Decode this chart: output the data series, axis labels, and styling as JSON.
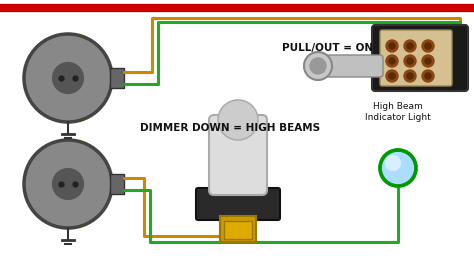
{
  "bg_color": "#ffffff",
  "red_wire_color": "#cc0000",
  "gold_wire_color": "#cc8800",
  "green_wire_color": "#22aa22",
  "black_wire_color": "#111111",
  "label_pullout": "PULL/OUT = ON",
  "label_dimmer": "DIMMER DOWN = HIGH BEAMS",
  "label_highbeam": "High Beam\nIndicator Light",
  "indicator_color": "#aaddff",
  "indicator_edge": "#22aa22",
  "font_size_label": 7.5,
  "font_size_indicator": 6.5
}
